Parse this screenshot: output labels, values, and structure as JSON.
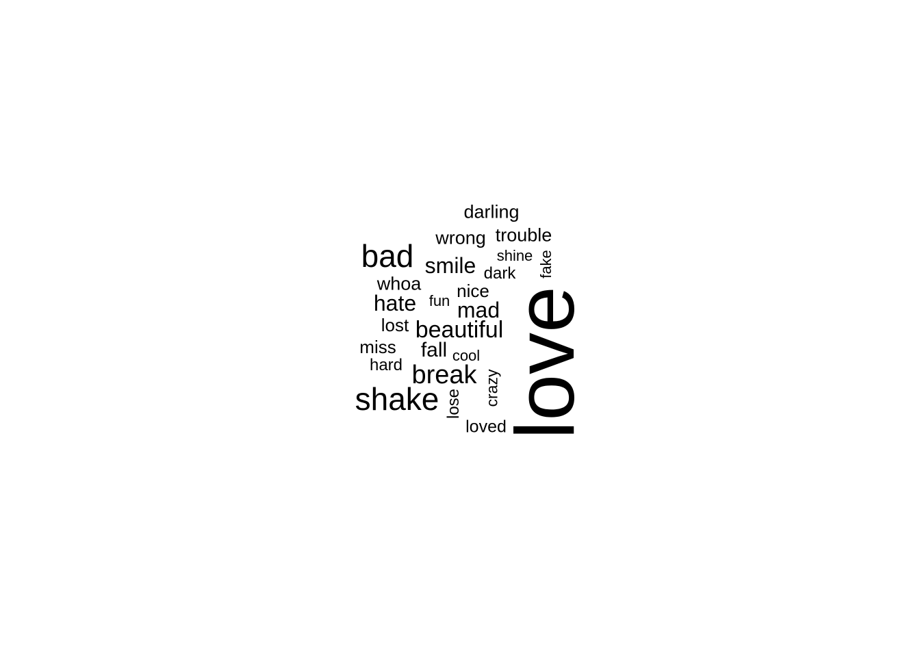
{
  "text_color": "#000000",
  "background_color": "#ffffff",
  "words": [
    {
      "id": "love",
      "text": "love",
      "rotated": true
    },
    {
      "id": "shake",
      "text": "shake",
      "rotated": false
    },
    {
      "id": "bad",
      "text": "bad",
      "rotated": false
    },
    {
      "id": "break",
      "text": "break",
      "rotated": false
    },
    {
      "id": "beautiful",
      "text": "beautiful",
      "rotated": false
    },
    {
      "id": "smile",
      "text": "smile",
      "rotated": false
    },
    {
      "id": "mad",
      "text": "mad",
      "rotated": false
    },
    {
      "id": "hate",
      "text": "hate",
      "rotated": false
    },
    {
      "id": "darling",
      "text": "darling",
      "rotated": false
    },
    {
      "id": "trouble",
      "text": "trouble",
      "rotated": false
    },
    {
      "id": "wrong",
      "text": "wrong",
      "rotated": false
    },
    {
      "id": "whoa",
      "text": "whoa",
      "rotated": false
    },
    {
      "id": "fall",
      "text": "fall",
      "rotated": false
    },
    {
      "id": "nice",
      "text": "nice",
      "rotated": false
    },
    {
      "id": "miss",
      "text": "miss",
      "rotated": false
    },
    {
      "id": "lost",
      "text": "lost",
      "rotated": false
    },
    {
      "id": "loved",
      "text": "loved",
      "rotated": false
    },
    {
      "id": "dark",
      "text": "dark",
      "rotated": false
    },
    {
      "id": "hard",
      "text": "hard",
      "rotated": false
    },
    {
      "id": "lose",
      "text": "lose",
      "rotated": true
    },
    {
      "id": "crazy",
      "text": "crazy",
      "rotated": true
    },
    {
      "id": "shine",
      "text": "shine",
      "rotated": false
    },
    {
      "id": "cool",
      "text": "cool",
      "rotated": false
    },
    {
      "id": "fun",
      "text": "fun",
      "rotated": false
    },
    {
      "id": "fake",
      "text": "fake",
      "rotated": true
    }
  ]
}
